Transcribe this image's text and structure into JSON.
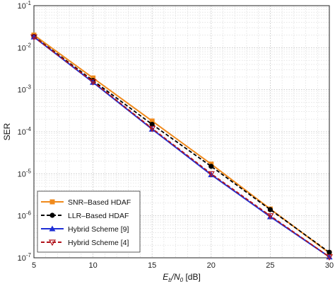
{
  "chart_data": {
    "type": "line",
    "title": "",
    "xlabel": {
      "main": "E",
      "sub1": "b",
      "mid": "/N",
      "sub2": "0",
      "unit": " [dB]"
    },
    "ylabel": "SER",
    "x_ticks": [
      5,
      10,
      15,
      20,
      25,
      30
    ],
    "y_ticks": [
      {
        "base": "10",
        "exp": "-7",
        "value": 1e-07
      },
      {
        "base": "10",
        "exp": "-6",
        "value": 1e-06
      },
      {
        "base": "10",
        "exp": "-5",
        "value": 1e-05
      },
      {
        "base": "10",
        "exp": "-4",
        "value": 0.0001
      },
      {
        "base": "10",
        "exp": "-3",
        "value": 0.001
      },
      {
        "base": "10",
        "exp": "-2",
        "value": 0.01
      },
      {
        "base": "10",
        "exp": "-1",
        "value": 0.1
      }
    ],
    "xlim": [
      5,
      30
    ],
    "ylim": [
      1e-07,
      0.1
    ],
    "yscale": "log",
    "grid": true,
    "legend_position": "bottom-left",
    "series": [
      {
        "name": "SNR–Based HDAF",
        "color": "#f08a1c",
        "line": "solid",
        "marker": "square",
        "x": [
          5,
          10,
          15,
          20,
          25,
          30
        ],
        "y": [
          0.02,
          0.0019,
          0.00018,
          1.7e-05,
          1.45e-06,
          1.3e-07
        ]
      },
      {
        "name": "LLR–Based HDAF",
        "color": "#000000",
        "line": "dashed",
        "marker": "circle",
        "x": [
          5,
          10,
          15,
          20,
          25,
          30
        ],
        "y": [
          0.0185,
          0.00165,
          0.00015,
          1.5e-05,
          1.4e-06,
          1.35e-07
        ]
      },
      {
        "name": "Hybrid Scheme [9]",
        "color": "#1f2fd6",
        "line": "solid",
        "marker": "triangle-up",
        "x": [
          5,
          10,
          15,
          20,
          25,
          30
        ],
        "y": [
          0.018,
          0.0015,
          0.000115,
          9.5e-06,
          9.5e-07,
          1.05e-07
        ]
      },
      {
        "name": "Hybrid Scheme [4]",
        "color": "#b0121a",
        "line": "dashed",
        "marker": "triangle-down-open",
        "x": [
          5,
          10,
          15,
          20,
          25,
          30
        ],
        "y": [
          0.018,
          0.00155,
          0.00012,
          1e-05,
          1e-06,
          1.05e-07
        ]
      }
    ]
  }
}
